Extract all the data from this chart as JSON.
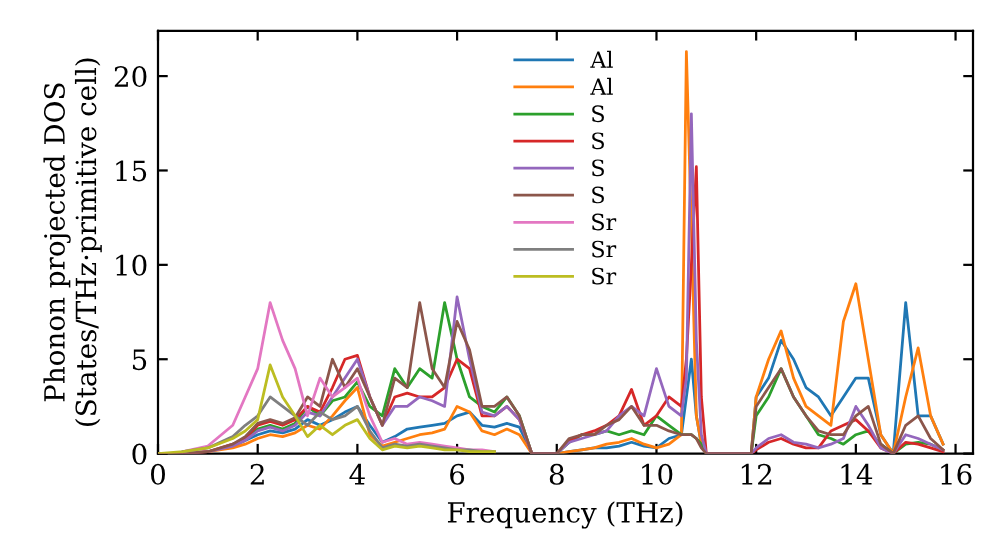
{
  "chart_data": {
    "type": "line",
    "xlabel": "Frequency (THz)",
    "ylabel": "Phonon projected DOS\n(States/THz·primitive cell)",
    "xlim": [
      0,
      16.35
    ],
    "ylim": [
      0,
      22.4
    ],
    "xticks": [
      0,
      2,
      4,
      6,
      8,
      10,
      12,
      14,
      16
    ],
    "yticks": [
      0,
      5,
      10,
      15,
      20
    ],
    "legend": "top",
    "grid": false,
    "marker": "none",
    "line_style": "solid",
    "x": [
      0,
      0.5,
      1,
      1.5,
      1.75,
      2,
      2.25,
      2.5,
      2.75,
      3,
      3.25,
      3.5,
      3.75,
      4,
      4.25,
      4.5,
      4.75,
      5,
      5.25,
      5.5,
      5.75,
      6,
      6.25,
      6.5,
      6.75,
      7,
      7.25,
      7.5,
      7.75,
      8,
      8.25,
      8.5,
      8.75,
      9,
      9.25,
      9.5,
      9.75,
      10,
      10.25,
      10.5,
      10.6,
      10.7,
      10.8,
      10.9,
      11,
      11.5,
      11.9,
      12,
      12.25,
      12.5,
      12.75,
      13,
      13.25,
      13.5,
      13.75,
      14,
      14.25,
      14.5,
      14.75,
      15,
      15.25,
      15.5,
      15.75
    ],
    "series": [
      {
        "name": "Al",
        "color": "#1f77b4",
        "values": [
          null,
          null,
          null,
          0.4,
          0.7,
          1.0,
          1.2,
          1.1,
          1.3,
          1.8,
          1.5,
          1.8,
          2.2,
          2.5,
          1.5,
          0.6,
          0.9,
          1.3,
          1.4,
          1.5,
          1.6,
          2.0,
          2.2,
          1.5,
          1.4,
          1.6,
          1.4,
          0,
          0,
          0,
          0.1,
          0.2,
          0.3,
          0.3,
          0.4,
          0.6,
          0.4,
          0.3,
          0.8,
          1.0,
          3,
          5,
          2,
          0.5,
          0,
          0,
          0,
          3,
          4,
          6,
          5,
          3.5,
          3,
          2,
          3,
          4,
          4,
          1,
          0,
          8,
          2,
          2,
          0.5
        ]
      },
      {
        "name": "Al",
        "color": "#ff7f0e",
        "values": [
          0,
          0,
          0.1,
          0.3,
          0.5,
          0.8,
          1.0,
          0.9,
          1.1,
          1.5,
          1.3,
          2.0,
          2.8,
          3.5,
          1.0,
          0.4,
          0.6,
          0.8,
          1.0,
          1.1,
          1.3,
          2.5,
          2.2,
          1.2,
          1.0,
          1.3,
          1.0,
          0,
          0,
          0,
          0.1,
          0.2,
          0.3,
          0.5,
          0.6,
          0.8,
          0.5,
          0.3,
          0.5,
          1.0,
          21.3,
          12,
          2,
          0.5,
          0,
          0,
          0,
          3,
          5,
          6.5,
          4,
          2.5,
          2,
          1.5,
          7,
          9,
          5,
          1,
          0,
          3,
          5.6,
          2,
          0.5
        ]
      },
      {
        "name": "S",
        "color": "#2ca02c",
        "values": [
          null,
          null,
          null,
          0.5,
          0.8,
          1.3,
          1.5,
          1.3,
          1.6,
          2.5,
          2.0,
          2.8,
          3.0,
          3.8,
          2.5,
          2.0,
          4.5,
          3.5,
          4.5,
          4.0,
          8.0,
          5.0,
          3.0,
          2.5,
          2.2,
          3.0,
          2.0,
          0,
          0,
          0,
          0.6,
          1.0,
          1.0,
          1.2,
          1.0,
          1.2,
          1.0,
          2.0,
          1.5,
          1.0,
          1.0,
          1.0,
          0.8,
          0.5,
          0,
          0,
          0,
          2,
          3,
          4.5,
          3,
          2,
          1,
          0.8,
          0.5,
          1.0,
          1.2,
          0.5,
          0,
          0.5,
          0.6,
          0.5,
          0.2
        ]
      },
      {
        "name": "S",
        "color": "#d62728",
        "values": [
          0,
          0,
          0.1,
          0.5,
          0.8,
          1.5,
          1.7,
          1.5,
          1.8,
          2.5,
          2.2,
          3.5,
          5.0,
          5.2,
          3.0,
          1.5,
          3.0,
          3.2,
          3.0,
          3.0,
          3.5,
          5.0,
          4.5,
          2.0,
          2.0,
          2.5,
          1.8,
          0,
          0,
          0,
          0.7,
          1.0,
          1.2,
          1.5,
          2.0,
          3.4,
          1.5,
          2.0,
          3.0,
          2.5,
          5,
          10,
          15.2,
          3,
          0,
          0,
          0,
          0.2,
          0.6,
          0.8,
          0.5,
          0.3,
          0.3,
          1.2,
          1.5,
          1.8,
          1.2,
          0.3,
          0,
          0.6,
          0.5,
          0.3,
          0.1
        ]
      },
      {
        "name": "S",
        "color": "#9467bd",
        "values": [
          0,
          0,
          0.1,
          0.4,
          0.7,
          1.2,
          1.4,
          1.2,
          1.5,
          2.2,
          2.0,
          3.0,
          4.0,
          5.0,
          3.0,
          1.5,
          2.5,
          2.5,
          3.0,
          2.8,
          2.5,
          8.3,
          5.0,
          2.2,
          2.0,
          2.5,
          1.8,
          0,
          0,
          0,
          0.6,
          0.8,
          1.0,
          1.2,
          2.0,
          2.5,
          2.0,
          4.5,
          2.5,
          2.0,
          4,
          18,
          6,
          1,
          0,
          0,
          0,
          0.3,
          0.8,
          1.0,
          0.6,
          0.5,
          0.3,
          0.5,
          0.8,
          2.5,
          1.5,
          0.3,
          0,
          1.0,
          0.8,
          0.5,
          0.2
        ]
      },
      {
        "name": "S",
        "color": "#8c564b",
        "values": [
          0,
          0,
          0.1,
          0.5,
          0.9,
          1.6,
          1.8,
          1.6,
          1.9,
          3.0,
          2.5,
          5.0,
          3.5,
          4.5,
          3.0,
          1.5,
          4.0,
          3.5,
          8.0,
          4.5,
          3.5,
          7.0,
          5.5,
          2.5,
          2.5,
          3.0,
          2.0,
          0,
          0,
          0,
          0.8,
          1.0,
          1.0,
          1.5,
          1.8,
          2.5,
          1.5,
          1.5,
          1.2,
          1.0,
          1.0,
          1.0,
          0.8,
          0.3,
          0,
          0,
          0,
          2.5,
          3.5,
          4.5,
          3.0,
          2.0,
          1.2,
          1.0,
          1.0,
          2.0,
          2.5,
          0.5,
          0,
          1.5,
          2.0,
          0.8,
          0.2
        ]
      },
      {
        "name": "Sr",
        "color": "#e377c2",
        "values": [
          null,
          0.1,
          0.4,
          1.5,
          3.0,
          4.5,
          8.0,
          6.0,
          4.5,
          2.0,
          4.0,
          3.0,
          3.5,
          4.0,
          2.0,
          0.6,
          0.8,
          0.5,
          0.6,
          0.5,
          0.4,
          0.3,
          0.2,
          0.2,
          0.1,
          null,
          null,
          null,
          null,
          null,
          null,
          null,
          null,
          null,
          null,
          null,
          null,
          null,
          null,
          null,
          null,
          null,
          null,
          null,
          null,
          null,
          null,
          null,
          null,
          null,
          null,
          null,
          null,
          null,
          null,
          null,
          null,
          null,
          null,
          null,
          null,
          null,
          null
        ]
      },
      {
        "name": "Sr",
        "color": "#7f7f7f",
        "values": [
          null,
          0.1,
          0.3,
          0.9,
          1.5,
          2.0,
          3.0,
          2.5,
          2.0,
          1.5,
          2.2,
          1.8,
          2.0,
          2.5,
          1.2,
          0.3,
          0.5,
          0.4,
          0.5,
          0.4,
          0.3,
          0.2,
          0.2,
          0.1,
          0.1,
          null,
          null,
          null,
          null,
          null,
          null,
          null,
          null,
          null,
          null,
          null,
          null,
          null,
          null,
          null,
          null,
          null,
          null,
          null,
          null,
          null,
          null,
          null,
          null,
          null,
          null,
          null,
          null,
          null,
          null,
          null,
          null,
          null,
          null,
          null,
          null,
          null,
          null
        ]
      },
      {
        "name": "Sr",
        "color": "#bcbd22",
        "values": [
          0,
          0.1,
          0.3,
          0.8,
          1.2,
          1.8,
          4.7,
          3.0,
          2.0,
          0.9,
          1.5,
          1.0,
          1.5,
          1.8,
          0.8,
          0.2,
          0.4,
          0.3,
          0.4,
          0.3,
          0.2,
          0.2,
          0.1,
          0.1,
          0.1,
          null,
          null,
          null,
          null,
          null,
          null,
          null,
          null,
          null,
          null,
          null,
          null,
          null,
          null,
          null,
          null,
          null,
          null,
          null,
          null,
          null,
          null,
          null,
          null,
          null,
          null,
          null,
          null,
          null,
          null,
          null,
          null,
          null,
          null,
          null,
          null,
          null,
          null
        ]
      }
    ]
  }
}
